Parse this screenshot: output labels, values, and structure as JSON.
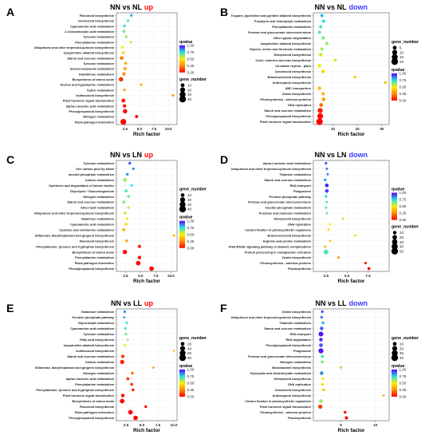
{
  "legend_titles": {
    "qvalue": "qvalue",
    "gene_number": "gene_number"
  },
  "colors": {
    "low": "#ff0000",
    "q025": "#ff8c00",
    "q050": "#f7f000",
    "q075": "#22e2e2",
    "high": "#5500ff"
  },
  "chart_data": [
    {
      "type": "scatter",
      "panel": "A",
      "title_main": "NN vs NL",
      "title_dir": "up",
      "title_dir_color": "#ff0000",
      "xlabel": "Rich factor",
      "xlim": [
        1,
        11.5
      ],
      "xticks": [
        2.5,
        5.0,
        7.5,
        10.0
      ],
      "xtick_labels": [
        "2.5",
        "5.0",
        "7.5",
        "10.0"
      ],
      "size_ticks": [
        10,
        20,
        30,
        40
      ],
      "size_range": [
        0,
        40
      ],
      "color_ticks": [
        1.0,
        0.75,
        0.5,
        0.25,
        0.0
      ],
      "color_tick_labels": [
        "1.00",
        "0.75",
        "0.50",
        "0.25",
        "0.00"
      ],
      "legend_order": "qvalue-first",
      "categories": [
        "Flavonoid biosynthesis",
        "Carotenoid biosynthesis",
        "Cyanoamino acid metabolism",
        "2-Oxocarboxylic acid metabolism",
        "Tyrosine metabolism",
        "Phenylalanine metabolism",
        "Ubiquinone and other terpenoid-quinone biosynthesis",
        "Isoquinoline alkaloid biosynthesis",
        "Starch and sucrose metabolism",
        "Tyrosine metabolism",
        "Selenocompound metabolism",
        "Glutathione metabolism",
        "Biosynthesis of amino acids",
        "Taurine and hypotaurine metabolism",
        "Sulfur metabolism",
        "Isoflavonoid biosynthesis",
        "Plant hormone signal transduction",
        "alpha-Linolenic acid metabolism",
        "Phenylpropanoid biosynthesis",
        "Nitrogen metabolism",
        "Plant-pathogen interaction"
      ],
      "points": [
        {
          "x": 3.6,
          "size": 4,
          "q": 0.8
        },
        {
          "x": 3.0,
          "size": 3,
          "q": 0.7
        },
        {
          "x": 2.4,
          "size": 4,
          "q": 0.72
        },
        {
          "x": 2.3,
          "size": 5,
          "q": 0.65
        },
        {
          "x": 2.7,
          "size": 4,
          "q": 0.62
        },
        {
          "x": 3.5,
          "size": 3,
          "q": 0.55
        },
        {
          "x": 2.0,
          "size": 4,
          "q": 0.5
        },
        {
          "x": 2.2,
          "size": 5,
          "q": 0.45
        },
        {
          "x": 1.9,
          "size": 8,
          "q": 0.2
        },
        {
          "x": 2.6,
          "size": 4,
          "q": 0.32
        },
        {
          "x": 2.5,
          "size": 5,
          "q": 0.3
        },
        {
          "x": 2.3,
          "size": 7,
          "q": 0.25
        },
        {
          "x": 1.8,
          "size": 14,
          "q": 0.08
        },
        {
          "x": 5.3,
          "size": 3,
          "q": 0.35
        },
        {
          "x": 2.4,
          "size": 3,
          "q": 0.3
        },
        {
          "x": 10.8,
          "size": 3,
          "q": 0.3
        },
        {
          "x": 2.2,
          "size": 10,
          "q": 0.03
        },
        {
          "x": 2.4,
          "size": 8,
          "q": 0.05
        },
        {
          "x": 2.5,
          "size": 14,
          "q": 0.02
        },
        {
          "x": 4.5,
          "size": 6,
          "q": 0.02
        },
        {
          "x": 2.2,
          "size": 28,
          "q": 0.0
        }
      ]
    },
    {
      "type": "scatter",
      "panel": "B",
      "title_main": "NN vs NL",
      "title_dir": "down",
      "title_dir_color": "#3a3aff",
      "xlabel": "Rich factor",
      "xlim": [
        2,
        33
      ],
      "xticks": [
        10,
        20,
        30
      ],
      "xtick_labels": [
        "10",
        "20",
        "30"
      ],
      "size_ticks": [
        5,
        10,
        15,
        20
      ],
      "size_range": [
        0,
        20
      ],
      "color_ticks": [
        1.0,
        0.75,
        0.5,
        0.25,
        0.0
      ],
      "color_tick_labels": [
        "1.00",
        "0.75",
        "0.50",
        "0.25",
        "0.00"
      ],
      "legend_order": "size-first",
      "categories": [
        "Tropane, piperidine and pyridine alkaloid biosynthesis",
        "Porphyrin and chlorophyll metabolism",
        "Phenylalanine metabolism",
        "Pentose and glucuronate interconversions",
        "Other glycan degradation",
        "Isoquinoline alkaloid biosynthesis",
        "Glycine, serine and threonine metabolism",
        "Diterpenoid biosynthesis",
        "Cutin, suberine and wax biosynthesis",
        "Circadian rhythm - plant",
        "Carotenoid biosynthesis",
        "Brassinosteroid biosynthesis",
        "Anthocyanin biosynthesis",
        "ABC transporters",
        "Zeatin biosynthesis",
        "Photosynthesis - antenna proteins",
        "DNA replication",
        "Starch and sucrose metabolism",
        "Phenylpropanoid biosynthesis",
        "Plant hormone signal transduction"
      ],
      "points": [
        {
          "x": 5.5,
          "size": 3,
          "q": 0.8
        },
        {
          "x": 6.2,
          "size": 3,
          "q": 0.75
        },
        {
          "x": 5.0,
          "size": 3,
          "q": 0.7
        },
        {
          "x": 4.5,
          "size": 3,
          "q": 0.68
        },
        {
          "x": 6.0,
          "size": 3,
          "q": 0.65
        },
        {
          "x": 7.5,
          "size": 3,
          "q": 0.62
        },
        {
          "x": 5.5,
          "size": 3,
          "q": 0.6
        },
        {
          "x": 5.0,
          "size": 4,
          "q": 0.55
        },
        {
          "x": 11.0,
          "size": 2,
          "q": 0.55
        },
        {
          "x": 4.5,
          "size": 4,
          "q": 0.5
        },
        {
          "x": 6.0,
          "size": 4,
          "q": 0.45
        },
        {
          "x": 19.0,
          "size": 2,
          "q": 0.42
        },
        {
          "x": 31.5,
          "size": 2,
          "q": 0.4
        },
        {
          "x": 4.5,
          "size": 4,
          "q": 0.38
        },
        {
          "x": 6.0,
          "size": 3,
          "q": 0.35
        },
        {
          "x": 6.2,
          "size": 4,
          "q": 0.3
        },
        {
          "x": 5.2,
          "size": 5,
          "q": 0.2
        },
        {
          "x": 4.8,
          "size": 10,
          "q": 0.05
        },
        {
          "x": 4.8,
          "size": 14,
          "q": 0.01
        },
        {
          "x": 4.5,
          "size": 19,
          "q": 0.0
        }
      ]
    },
    {
      "type": "scatter",
      "panel": "C",
      "title_main": "NN vs LN",
      "title_dir": "up",
      "title_dir_color": "#ff0000",
      "xlabel": "Rich factor",
      "xlim": [
        1,
        11
      ],
      "xticks": [
        2.5,
        5.0,
        7.5,
        10.0
      ],
      "xtick_labels": [
        "2.5",
        "5.0",
        "7.5",
        "10.0"
      ],
      "size_ticks": [
        10,
        20,
        30,
        40
      ],
      "size_range": [
        0,
        40
      ],
      "color_ticks": [
        1.0,
        0.75,
        0.5,
        0.25,
        0.0
      ],
      "color_tick_labels": [
        "1.00",
        "0.75",
        "0.50",
        "0.25",
        "0.00"
      ],
      "legend_order": "size-first",
      "categories": [
        "Tyrosine metabolism",
        "One carbon pool by folate",
        "Inositol phosphate metabolism",
        "Carbon metabolism",
        "Synthesis and degradation of ketone bodies",
        "Glycolysis / Gluconeogenesis",
        "Nitrogen metabolism",
        "Starch and sucrose metabolism",
        "Ether lipid metabolism",
        "Ubiquinone and other terpenoid-quinone biosynthesis",
        "Galactose metabolism",
        "Cyanoamino acid metabolism",
        "Cysteine and methionine metabolism",
        "Stilbenoid, diarylheptanoid and gingerol biosynthesis",
        "Flavonoid biosynthesis",
        "Phenylalanine, tyrosine and tryptophan biosynthesis",
        "Biosynthesis of amino acids",
        "Phenylalanine metabolism",
        "Plant-pathogen interaction",
        "Phenylpropanoid biosynthesis"
      ],
      "points": [
        {
          "x": 3.2,
          "size": 4,
          "q": 0.9
        },
        {
          "x": 3.8,
          "size": 3,
          "q": 0.85
        },
        {
          "x": 2.8,
          "size": 4,
          "q": 0.82
        },
        {
          "x": 2.4,
          "size": 9,
          "q": 0.6
        },
        {
          "x": 3.5,
          "size": 3,
          "q": 0.75
        },
        {
          "x": 2.6,
          "size": 5,
          "q": 0.7
        },
        {
          "x": 3.0,
          "size": 4,
          "q": 0.65
        },
        {
          "x": 2.2,
          "size": 5,
          "q": 0.62
        },
        {
          "x": 3.0,
          "size": 3,
          "q": 0.58
        },
        {
          "x": 2.4,
          "size": 4,
          "q": 0.55
        },
        {
          "x": 2.8,
          "size": 3,
          "q": 0.5
        },
        {
          "x": 2.6,
          "size": 4,
          "q": 0.45
        },
        {
          "x": 2.2,
          "size": 5,
          "q": 0.35
        },
        {
          "x": 10.5,
          "size": 3,
          "q": 0.38
        },
        {
          "x": 2.7,
          "size": 4,
          "q": 0.3
        },
        {
          "x": 4.8,
          "size": 6,
          "q": 0.05
        },
        {
          "x": 2.4,
          "size": 14,
          "q": 0.02
        },
        {
          "x": 4.8,
          "size": 8,
          "q": 0.03
        },
        {
          "x": 4.6,
          "size": 16,
          "q": 0.0
        },
        {
          "x": 6.8,
          "size": 16,
          "q": 0.01
        }
      ]
    },
    {
      "type": "scatter",
      "panel": "D",
      "title_main": "NN vs LN",
      "title_dir": "down",
      "title_dir_color": "#3a3aff",
      "xlabel": "Rich factor",
      "xlim": [
        1,
        10
      ],
      "xticks": [
        2.5,
        5.0,
        7.5
      ],
      "xtick_labels": [
        "2.5",
        "5.0",
        "7.5"
      ],
      "size_ticks": [
        10,
        20,
        30,
        40,
        50
      ],
      "size_range": [
        0,
        50
      ],
      "color_ticks": [
        1.0,
        0.75,
        0.5,
        0.25,
        0.0
      ],
      "color_tick_labels": [
        "1.00",
        "0.75",
        "0.50",
        "0.25",
        "0.00"
      ],
      "legend_order": "qvalue-first",
      "categories": [
        "alpha-Linolenic acid metabolism",
        "Ubiquinone and other terpenoid-quinone biosynthesis",
        "Thiamine metabolism",
        "Starch and sucrose metabolism",
        "RNA transport",
        "Phagosome",
        "Pentose phosphate pathway",
        "Pentose and glucuronate interconversions",
        "Inositol phosphate metabolism",
        "Fructose and mannose metabolism",
        "Diterpenoid biosynthesis",
        "DNA replication",
        "Carbon fixation in photosynthetic organisms",
        "Brassinosteroid biosynthesis",
        "Arginine and proline metabolism",
        "AGE-RAGE signaling pathway in diabetic complications",
        "Protein processing in endoplasmic reticulum",
        "Zeatin biosynthesis",
        "Photosynthesis - antenna proteins",
        "Photosynthesis"
      ],
      "points": [
        {
          "x": 2.5,
          "size": 4,
          "q": 0.9
        },
        {
          "x": 2.6,
          "size": 3,
          "q": 0.88
        },
        {
          "x": 2.7,
          "size": 3,
          "q": 0.85
        },
        {
          "x": 2.4,
          "size": 5,
          "q": 0.82
        },
        {
          "x": 2.6,
          "size": 12,
          "q": 0.95
        },
        {
          "x": 2.6,
          "size": 12,
          "q": 0.92
        },
        {
          "x": 2.5,
          "size": 4,
          "q": 0.75
        },
        {
          "x": 2.6,
          "size": 3,
          "q": 0.7
        },
        {
          "x": 2.5,
          "size": 3,
          "q": 0.68
        },
        {
          "x": 2.6,
          "size": 3,
          "q": 0.65
        },
        {
          "x": 4.5,
          "size": 3,
          "q": 0.55
        },
        {
          "x": 3.0,
          "size": 3,
          "q": 0.5
        },
        {
          "x": 2.8,
          "size": 3,
          "q": 0.45
        },
        {
          "x": 6.0,
          "size": 3,
          "q": 0.45
        },
        {
          "x": 3.0,
          "size": 3,
          "q": 0.4
        },
        {
          "x": 2.4,
          "size": 3,
          "q": 0.35
        },
        {
          "x": 2.5,
          "size": 22,
          "q": 0.7
        },
        {
          "x": 4.0,
          "size": 3,
          "q": 0.25
        },
        {
          "x": 7.2,
          "size": 4,
          "q": 0.05
        },
        {
          "x": 7.6,
          "size": 6,
          "q": 0.0
        }
      ]
    },
    {
      "type": "scatter",
      "panel": "E",
      "title_main": "NN vs LL",
      "title_dir": "up",
      "title_dir_color": "#ff0000",
      "xlabel": "Rich factor",
      "xlim": [
        1,
        10.5
      ],
      "xticks": [
        2.5,
        5.0,
        7.5,
        10.0
      ],
      "xtick_labels": [
        "2.5",
        "5.0",
        "7.5",
        "10.0"
      ],
      "size_ticks": [
        20,
        40,
        60,
        80
      ],
      "size_range": [
        0,
        80
      ],
      "color_ticks": [
        1.0,
        0.75,
        0.5,
        0.25,
        0.0
      ],
      "color_tick_labels": [
        "1.00",
        "0.75",
        "0.50",
        "0.25",
        "0.00"
      ],
      "legend_order": "size-first",
      "categories": [
        "Galactose metabolism",
        "Pentose phosphate pathway",
        "Glycerolipid metabolism",
        "Cyanoamino acid metabolism",
        "Tyrosine metabolism",
        "Fatty acid biosynthesis",
        "Isoquinoline alkaloid biosynthesis",
        "Isoflavonoid biosynthesis",
        "Starch and sucrose metabolism",
        "Carbon metabolism",
        "Stilbenoid, diarylheptanoid and gingerol biosynthesis",
        "Nitrogen metabolism",
        "alpha-Linolenic acid metabolism",
        "Phenylalanine metabolism",
        "Phenylalanine, tyrosine and tryptophan biosynthesis",
        "Plant hormone signal transduction",
        "Biosynthesis of amino acids",
        "Flavonoid biosynthesis",
        "Plant-pathogen interaction",
        "Phenylpropanoid biosynthesis"
      ],
      "points": [
        {
          "x": 2.3,
          "size": 6,
          "q": 0.85
        },
        {
          "x": 2.2,
          "size": 5,
          "q": 0.8
        },
        {
          "x": 2.6,
          "size": 5,
          "q": 0.75
        },
        {
          "x": 2.4,
          "size": 6,
          "q": 0.7
        },
        {
          "x": 2.5,
          "size": 6,
          "q": 0.65
        },
        {
          "x": 2.8,
          "size": 4,
          "q": 0.6
        },
        {
          "x": 2.3,
          "size": 5,
          "q": 0.5
        },
        {
          "x": 10.0,
          "size": 3,
          "q": 0.4
        },
        {
          "x": 2.0,
          "size": 14,
          "q": 0.1
        },
        {
          "x": 1.9,
          "size": 26,
          "q": 0.05
        },
        {
          "x": 6.8,
          "size": 4,
          "q": 0.3
        },
        {
          "x": 3.5,
          "size": 8,
          "q": 0.2
        },
        {
          "x": 2.8,
          "size": 10,
          "q": 0.1
        },
        {
          "x": 3.4,
          "size": 10,
          "q": 0.1
        },
        {
          "x": 3.6,
          "size": 8,
          "q": 0.05
        },
        {
          "x": 2.0,
          "size": 18,
          "q": 0.03
        },
        {
          "x": 1.9,
          "size": 32,
          "q": 0.01
        },
        {
          "x": 5.6,
          "size": 8,
          "q": 0.02
        },
        {
          "x": 3.2,
          "size": 32,
          "q": 0.0
        },
        {
          "x": 4.0,
          "size": 30,
          "q": 0.0
        }
      ]
    },
    {
      "type": "scatter",
      "panel": "F",
      "title_main": "NN vs LL",
      "title_dir": "down",
      "title_dir_color": "#3a3aff",
      "xlabel": "Rich factor",
      "xlim": [
        1,
        12
      ],
      "xticks": [
        5,
        10
      ],
      "xtick_labels": [
        "5",
        "10"
      ],
      "size_ticks": [
        10,
        20,
        30,
        40
      ],
      "size_range": [
        0,
        40
      ],
      "color_ticks": [
        1.0,
        0.75,
        0.5,
        0.25,
        0.0
      ],
      "color_tick_labels": [
        "1.00",
        "0.75",
        "0.50",
        "0.25",
        "0.00"
      ],
      "legend_order": "size-first",
      "categories": [
        "Zeatin biosynthesis",
        "Ubiquinone and other terpenoid-quinone biosynthesis",
        "Thiamine metabolism",
        "Starch and sucrose metabolism",
        "RNA transport",
        "RNA degradation",
        "Phenylpropanoid biosynthesis",
        "Phagosome",
        "Pentose and glucuronate interconversions",
        "Nitrogen metabolism",
        "Monobactam biosynthesis",
        "Glyoxylate and dicarboxylate metabolism",
        "Diterpenoid biosynthesis",
        "DNA replication",
        "Carotenoid biosynthesis",
        "Anthocyanin biosynthesis",
        "Carbon fixation in photosynthetic organisms",
        "Plant hormone signal transduction",
        "Photosynthesis - antenna proteins",
        "Photosynthesis"
      ],
      "points": [
        {
          "x": 2.3,
          "size": 4,
          "q": 0.9
        },
        {
          "x": 2.2,
          "size": 4,
          "q": 0.85
        },
        {
          "x": 2.4,
          "size": 4,
          "q": 0.8
        },
        {
          "x": 2.2,
          "size": 8,
          "q": 0.9
        },
        {
          "x": 2.1,
          "size": 18,
          "q": 0.98
        },
        {
          "x": 2.1,
          "size": 9,
          "q": 0.95
        },
        {
          "x": 2.1,
          "size": 10,
          "q": 0.9
        },
        {
          "x": 2.1,
          "size": 20,
          "q": 0.98
        },
        {
          "x": 2.3,
          "size": 5,
          "q": 0.7
        },
        {
          "x": 2.3,
          "size": 5,
          "q": 0.65
        },
        {
          "x": 5.0,
          "size": 3,
          "q": 0.6
        },
        {
          "x": 2.2,
          "size": 8,
          "q": 0.85
        },
        {
          "x": 2.4,
          "size": 4,
          "q": 0.5
        },
        {
          "x": 2.3,
          "size": 4,
          "q": 0.45
        },
        {
          "x": 2.5,
          "size": 4,
          "q": 0.4
        },
        {
          "x": 11.2,
          "size": 2,
          "q": 0.35
        },
        {
          "x": 2.1,
          "size": 10,
          "q": 0.6
        },
        {
          "x": 2.0,
          "size": 12,
          "q": 0.1
        },
        {
          "x": 5.6,
          "size": 4,
          "q": 0.02
        },
        {
          "x": 5.8,
          "size": 6,
          "q": 0.0
        }
      ]
    }
  ]
}
